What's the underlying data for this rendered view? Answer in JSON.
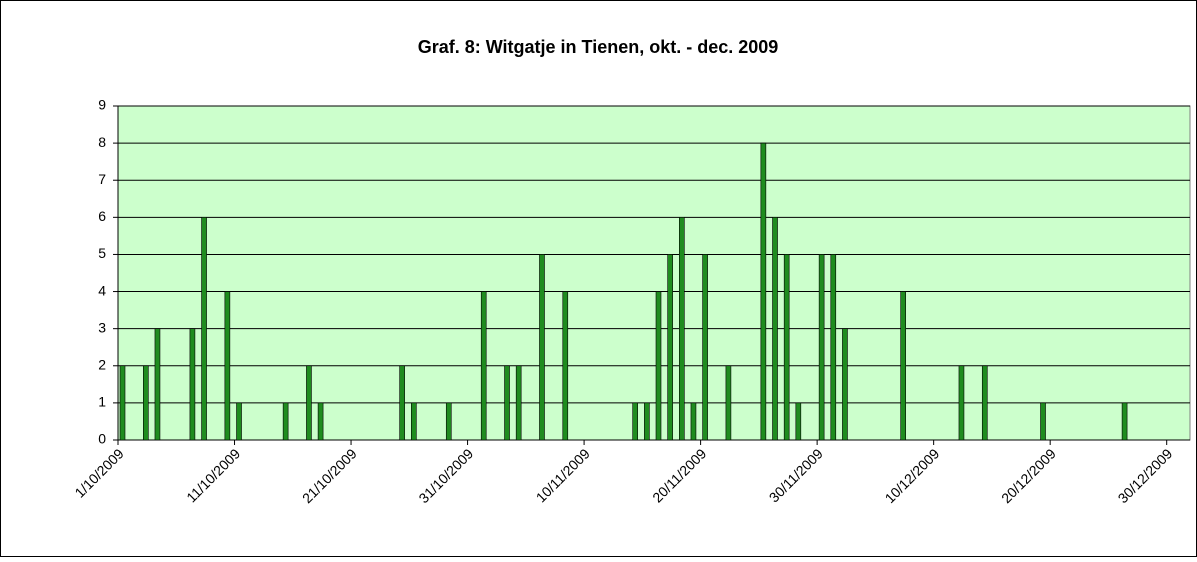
{
  "chart_data": {
    "type": "bar",
    "title": "Graf. 8: Witgatje in Tienen, okt. - dec. 2009",
    "categories": [
      "1/10/2009",
      null,
      null,
      null,
      null,
      null,
      null,
      null,
      null,
      null,
      "11/10/2009",
      null,
      null,
      null,
      null,
      null,
      null,
      null,
      null,
      null,
      "21/10/2009",
      null,
      null,
      null,
      null,
      null,
      null,
      null,
      null,
      null,
      "31/10/2009",
      null,
      null,
      null,
      null,
      null,
      null,
      null,
      null,
      null,
      "10/11/2009",
      null,
      null,
      null,
      null,
      null,
      null,
      null,
      null,
      null,
      "20/11/2009",
      null,
      null,
      null,
      null,
      null,
      null,
      null,
      null,
      null,
      "30/11/2009",
      null,
      null,
      null,
      null,
      null,
      null,
      null,
      null,
      null,
      "10/12/2009",
      null,
      null,
      null,
      null,
      null,
      null,
      null,
      null,
      null,
      "20/12/2009",
      null,
      null,
      null,
      null,
      null,
      null,
      null,
      null,
      null,
      "30/12/2009",
      null
    ],
    "values": [
      2,
      0,
      2,
      3,
      0,
      0,
      3,
      6,
      0,
      4,
      1,
      0,
      0,
      0,
      1,
      0,
      2,
      1,
      0,
      0,
      0,
      0,
      0,
      0,
      2,
      1,
      0,
      0,
      1,
      0,
      0,
      4,
      0,
      2,
      2,
      0,
      5,
      0,
      4,
      0,
      0,
      0,
      0,
      0,
      1,
      1,
      4,
      5,
      6,
      1,
      5,
      0,
      2,
      0,
      0,
      8,
      6,
      5,
      1,
      0,
      5,
      5,
      3,
      0,
      0,
      0,
      0,
      4,
      0,
      0,
      0,
      0,
      2,
      0,
      2,
      0,
      0,
      0,
      0,
      1,
      0,
      0,
      0,
      0,
      0,
      0,
      1,
      0,
      0,
      0,
      0,
      0
    ],
    "color": "#1f8c1f",
    "ylim": [
      0,
      9
    ],
    "yticks": [
      0,
      1,
      2,
      3,
      4,
      5,
      6,
      7,
      8,
      9
    ],
    "grid": true
  }
}
